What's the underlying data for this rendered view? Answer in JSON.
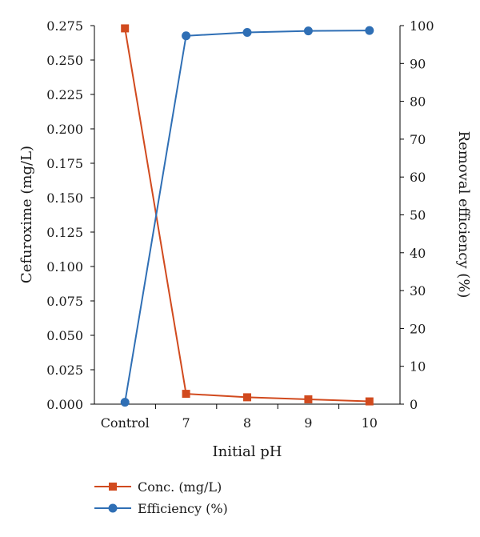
{
  "chart_data": {
    "type": "line",
    "categories": [
      "Control",
      "7",
      "8",
      "9",
      "10"
    ],
    "xlabel": "Initial pH",
    "ylabel": "Cefuroxime (mg/L)",
    "y2label": "Removal efficiency (%)",
    "ylim": [
      0,
      0.275
    ],
    "y2lim": [
      0,
      100
    ],
    "yticks": [
      "0.000",
      "0.025",
      "0.050",
      "0.075",
      "0.100",
      "0.125",
      "0.150",
      "0.175",
      "0.200",
      "0.225",
      "0.250",
      "0.275"
    ],
    "y2ticks": [
      "0",
      "10",
      "20",
      "30",
      "40",
      "50",
      "60",
      "70",
      "80",
      "90",
      "100"
    ],
    "grid": false,
    "legend_position": "bottom-left",
    "series": [
      {
        "name": "Conc. (mg/L)",
        "axis": "left",
        "marker": "square",
        "color": "#d14a1e",
        "values": [
          0.273,
          0.0075,
          0.005,
          0.0035,
          0.002
        ]
      },
      {
        "name": "Efficiency (%)",
        "axis": "right",
        "marker": "circle",
        "color": "#2f6fb5",
        "values": [
          0.5,
          97.3,
          98.2,
          98.6,
          98.7
        ]
      }
    ]
  }
}
